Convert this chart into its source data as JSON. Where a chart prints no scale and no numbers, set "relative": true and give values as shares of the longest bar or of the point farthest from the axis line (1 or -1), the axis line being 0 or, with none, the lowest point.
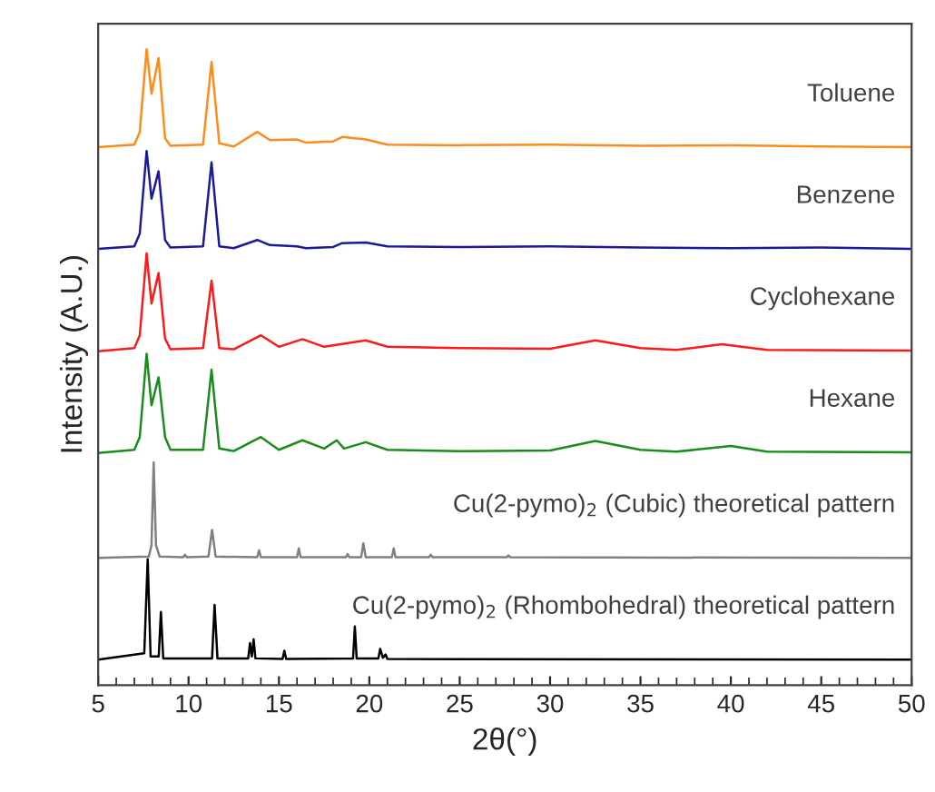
{
  "chart_data": {
    "type": "line",
    "relative": true,
    "xlabel": "2θ(°)",
    "ylabel": "Intensity (A.U.)",
    "xlim": [
      5,
      50
    ],
    "xticks": [
      5,
      10,
      15,
      20,
      25,
      30,
      35,
      40,
      45,
      50
    ],
    "grid": false,
    "legend": false,
    "marker": "none",
    "line_style": "solid",
    "series": [
      {
        "name": "Toluene",
        "color": "#ff8c1a",
        "x": [
          5,
          7.0,
          7.3,
          7.68,
          7.95,
          8.34,
          8.7,
          9.0,
          10.8,
          11.27,
          11.7,
          12.5,
          13.8,
          14.5,
          16.0,
          16.5,
          18.0,
          18.5,
          19.8,
          21,
          25,
          30,
          35,
          40,
          45,
          50
        ],
        "values": [
          0.846,
          0.85,
          0.87,
          1.0,
          0.93,
          0.986,
          0.86,
          0.848,
          0.85,
          0.98,
          0.852,
          0.847,
          0.87,
          0.857,
          0.858,
          0.853,
          0.855,
          0.862,
          0.858,
          0.85,
          0.849,
          0.85,
          0.848,
          0.849,
          0.847,
          0.846
        ]
      },
      {
        "name": "Benzene",
        "color": "#1a1a9a",
        "x": [
          5,
          7.0,
          7.3,
          7.68,
          7.95,
          8.34,
          8.7,
          9.0,
          10.8,
          11.27,
          11.7,
          12.5,
          13.8,
          14.5,
          16.0,
          16.5,
          18.0,
          18.5,
          19.8,
          21,
          25,
          30,
          35,
          40,
          45,
          50
        ],
        "values": [
          0.686,
          0.69,
          0.71,
          0.84,
          0.765,
          0.808,
          0.7,
          0.688,
          0.69,
          0.822,
          0.69,
          0.687,
          0.7,
          0.692,
          0.69,
          0.687,
          0.689,
          0.695,
          0.696,
          0.69,
          0.689,
          0.69,
          0.688,
          0.687,
          0.688,
          0.686
        ]
      },
      {
        "name": "Cyclohexane",
        "color": "#ff1a1a",
        "x": [
          5,
          7.0,
          7.3,
          7.68,
          7.95,
          8.34,
          8.7,
          9.0,
          10.8,
          11.27,
          11.7,
          12.5,
          14.0,
          15.0,
          16.3,
          17.5,
          19.8,
          21,
          25,
          30,
          32.5,
          35,
          37,
          39.5,
          42,
          50
        ],
        "values": [
          0.525,
          0.53,
          0.55,
          0.679,
          0.6,
          0.648,
          0.545,
          0.528,
          0.53,
          0.636,
          0.53,
          0.528,
          0.55,
          0.532,
          0.544,
          0.532,
          0.542,
          0.532,
          0.53,
          0.529,
          0.542,
          0.53,
          0.527,
          0.536,
          0.527,
          0.526
        ]
      },
      {
        "name": "Hexane",
        "color": "#1a8c1a",
        "x": [
          5,
          7.0,
          7.3,
          7.68,
          7.95,
          8.34,
          8.7,
          9.0,
          10.8,
          11.27,
          11.7,
          12.5,
          14.0,
          15.0,
          16.3,
          17.5,
          18.2,
          18.6,
          19.8,
          21,
          25,
          30,
          32.5,
          35,
          37,
          40,
          42,
          50
        ],
        "values": [
          0.365,
          0.37,
          0.39,
          0.521,
          0.44,
          0.484,
          0.39,
          0.37,
          0.37,
          0.496,
          0.372,
          0.368,
          0.39,
          0.37,
          0.385,
          0.372,
          0.385,
          0.372,
          0.382,
          0.37,
          0.368,
          0.369,
          0.384,
          0.37,
          0.367,
          0.376,
          0.367,
          0.366
        ]
      },
      {
        "name": "Cu(2-pymo)$_{2}$ (Cubic) theoretical pattern",
        "color": "#808080",
        "x": [
          5,
          7.8,
          7.95,
          8.07,
          8.2,
          8.4,
          9.7,
          9.8,
          9.9,
          11.1,
          11.3,
          11.5,
          13.8,
          13.9,
          14.0,
          16.0,
          16.1,
          16.2,
          18.7,
          18.8,
          18.9,
          19.55,
          19.67,
          19.8,
          21.25,
          21.35,
          21.45,
          23.3,
          23.4,
          23.5,
          27.6,
          27.7,
          27.8,
          50
        ],
        "values": [
          0.2,
          0.202,
          0.22,
          0.35,
          0.22,
          0.202,
          0.201,
          0.205,
          0.201,
          0.202,
          0.244,
          0.202,
          0.201,
          0.212,
          0.201,
          0.201,
          0.215,
          0.201,
          0.201,
          0.206,
          0.201,
          0.201,
          0.223,
          0.201,
          0.201,
          0.215,
          0.201,
          0.201,
          0.205,
          0.201,
          0.201,
          0.204,
          0.201,
          0.2
        ]
      },
      {
        "name": "Cu(2-pymo)$_{2}$ (Rhombohedral) theoretical pattern",
        "color": "#000000",
        "x": [
          5,
          7.55,
          7.74,
          7.9,
          8.35,
          8.47,
          8.6,
          11.3,
          11.44,
          11.6,
          13.3,
          13.4,
          13.5,
          13.6,
          13.7,
          15.2,
          15.3,
          15.4,
          19.1,
          19.2,
          19.3,
          20.5,
          20.6,
          20.75,
          20.9,
          21.0,
          50
        ],
        "values": [
          0.04,
          0.05,
          0.198,
          0.045,
          0.045,
          0.115,
          0.042,
          0.042,
          0.126,
          0.042,
          0.042,
          0.066,
          0.045,
          0.072,
          0.042,
          0.041,
          0.054,
          0.041,
          0.042,
          0.092,
          0.042,
          0.042,
          0.057,
          0.043,
          0.048,
          0.041,
          0.04
        ]
      }
    ]
  }
}
